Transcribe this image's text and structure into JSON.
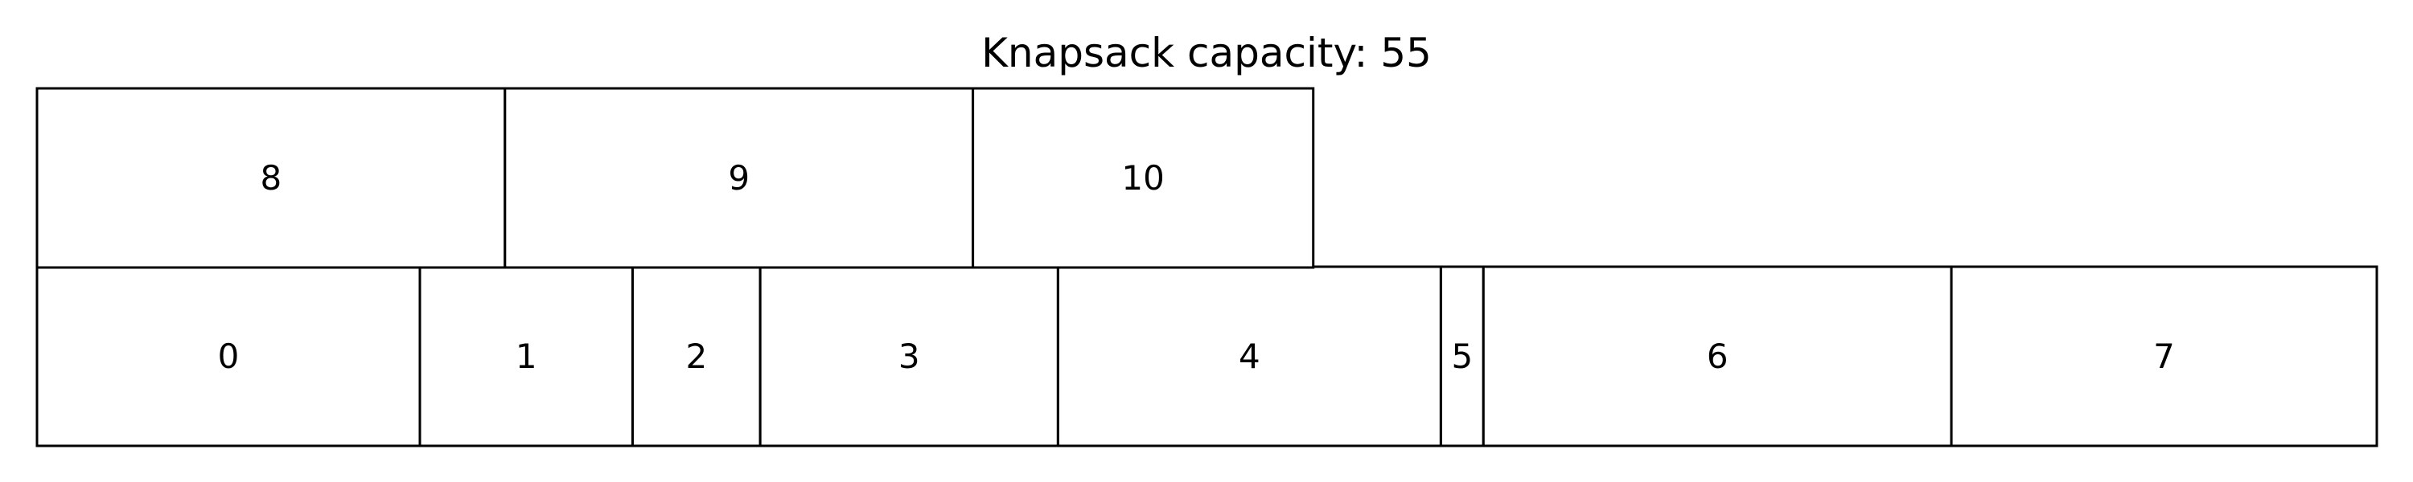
{
  "title": "Knapsack capacity: 55",
  "capacity": 55,
  "rows": [
    {
      "items": [
        {
          "label": "0",
          "size": 9
        },
        {
          "label": "1",
          "size": 5
        },
        {
          "label": "2",
          "size": 3
        },
        {
          "label": "3",
          "size": 7
        },
        {
          "label": "4",
          "size": 9
        },
        {
          "label": "5",
          "size": 1
        },
        {
          "label": "6",
          "size": 11
        },
        {
          "label": "7",
          "size": 10
        }
      ]
    },
    {
      "items": [
        {
          "label": "8",
          "size": 11
        },
        {
          "label": "9",
          "size": 11
        },
        {
          "label": "10",
          "size": 8
        }
      ]
    }
  ]
}
